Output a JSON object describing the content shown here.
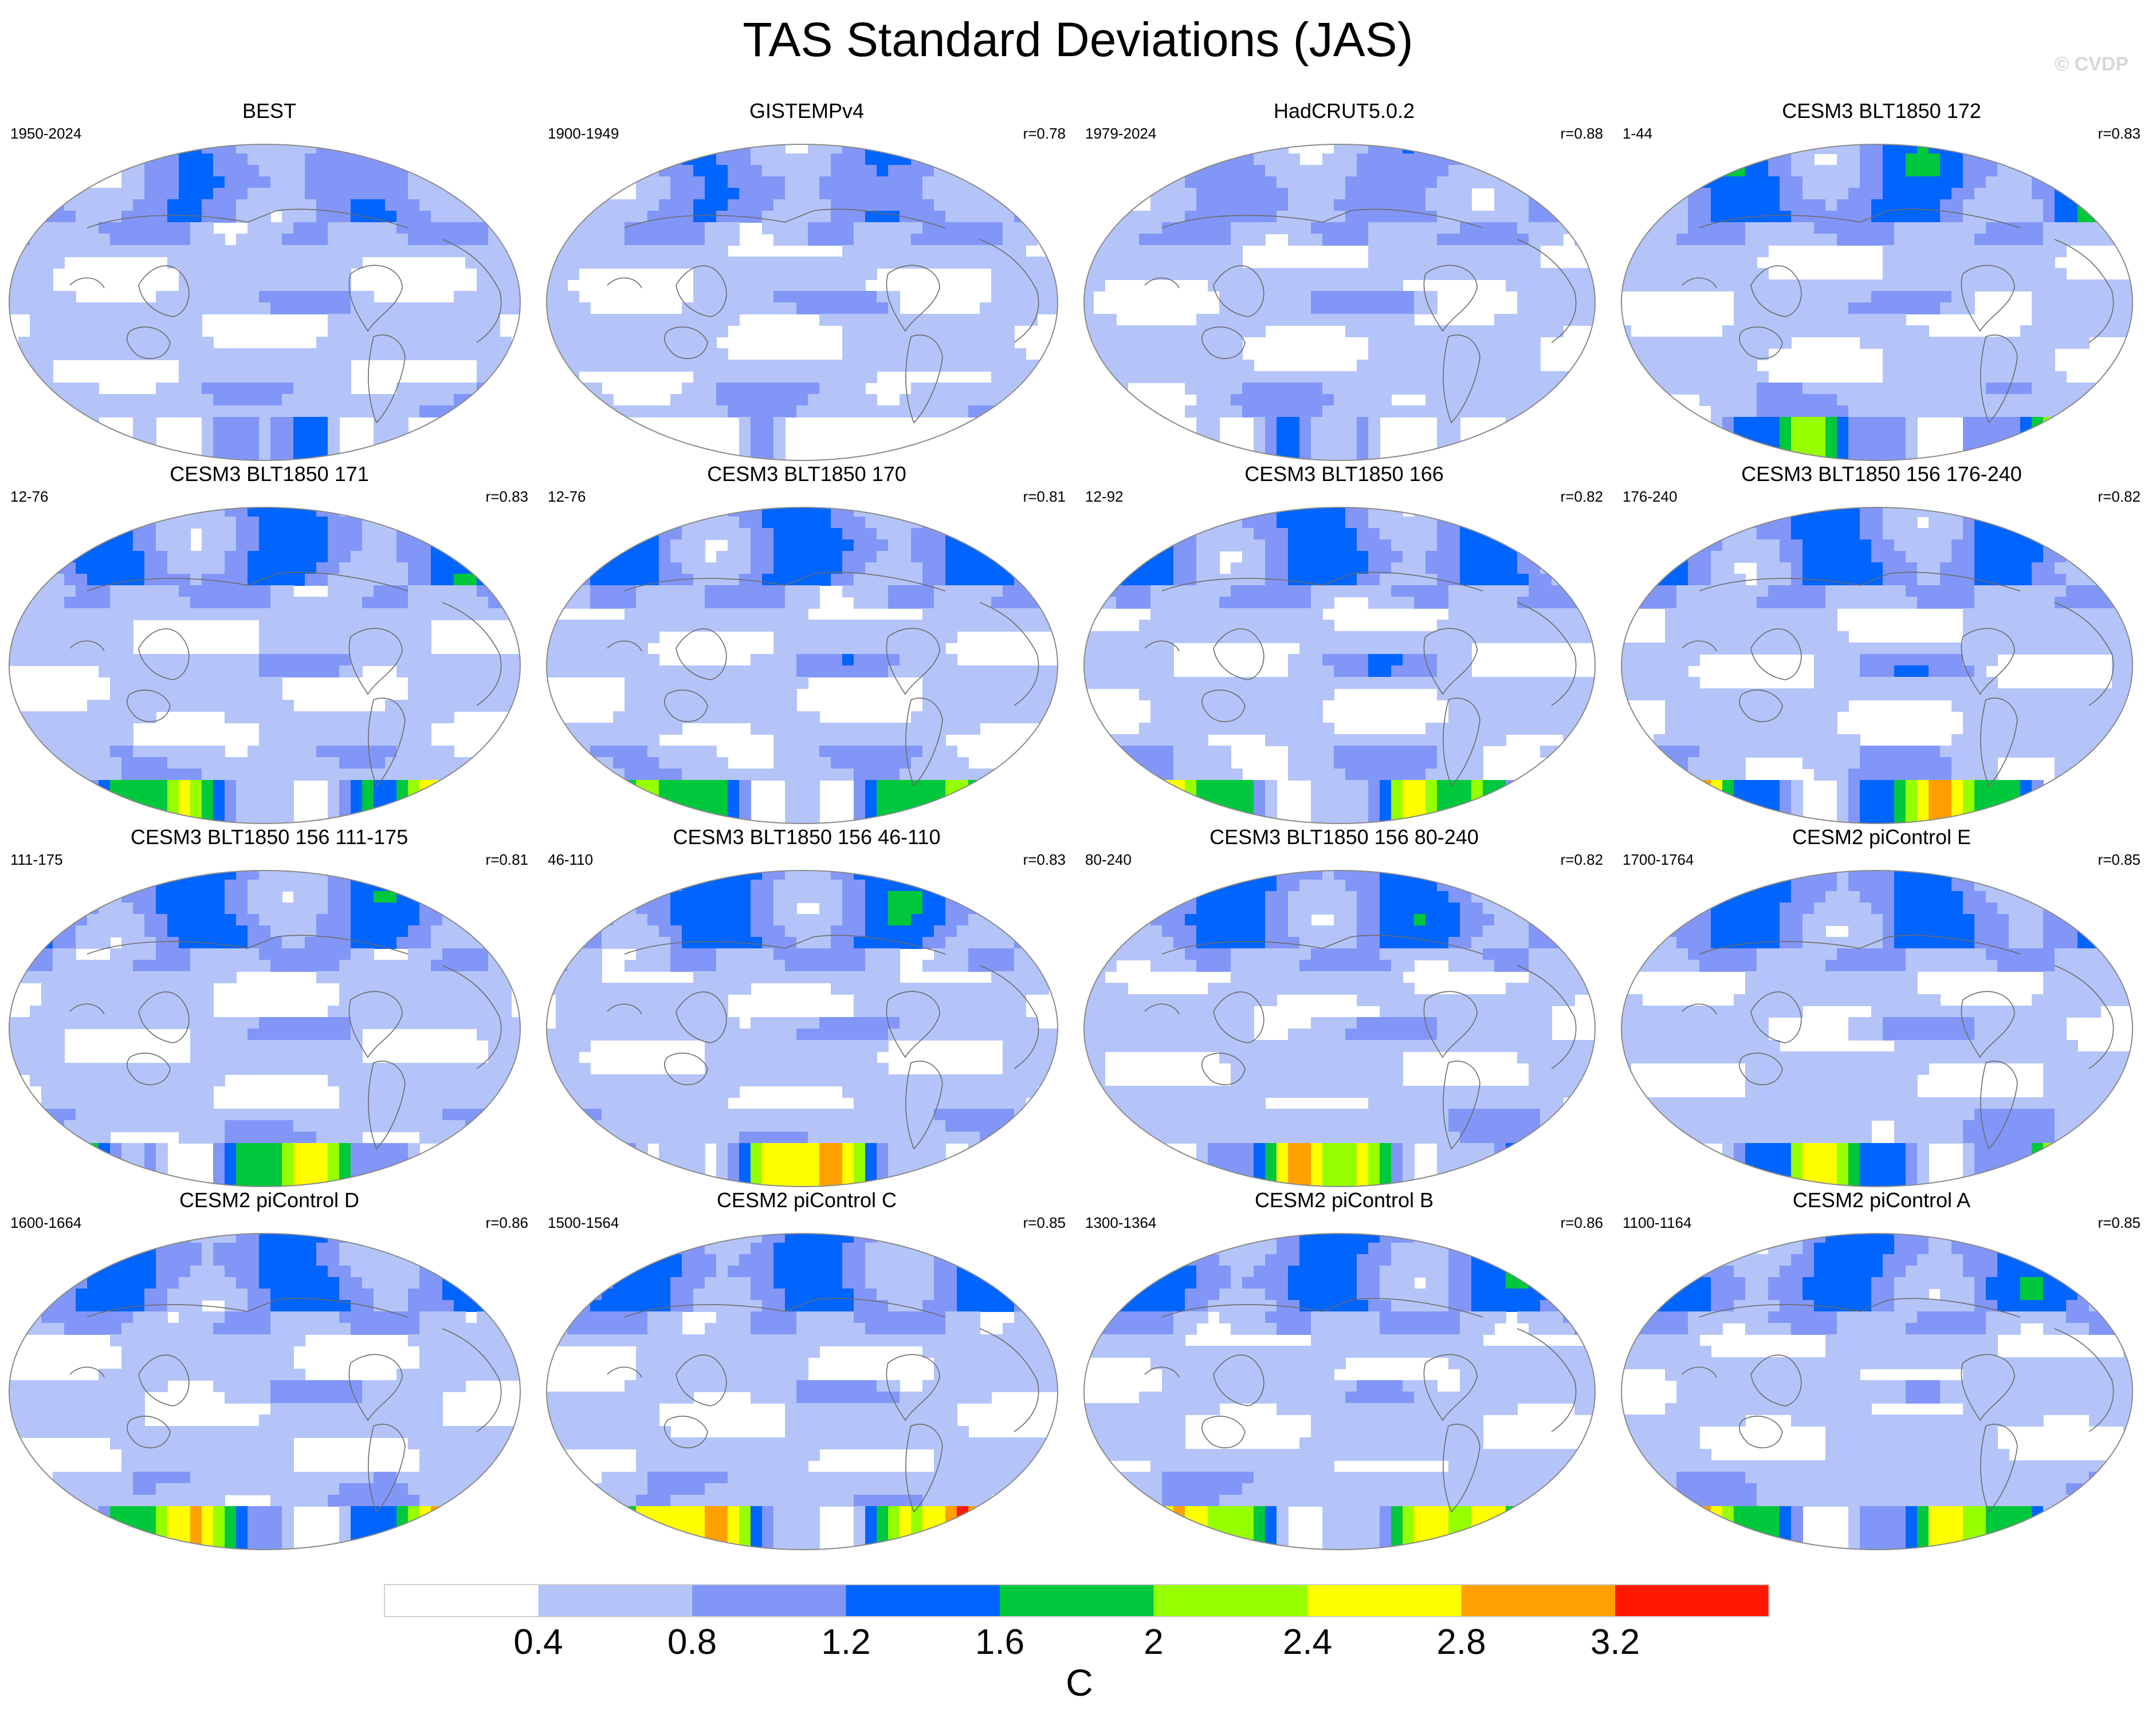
{
  "title": "TAS Standard Deviations (JAS)",
  "watermark": "© CVDP",
  "panels": [
    {
      "title": "BEST",
      "years": "1950-2024",
      "corr": "",
      "variant": "obs",
      "ant": 1.2,
      "arc": 1.0
    },
    {
      "title": "GISTEMPv4",
      "years": "1900-1949",
      "corr": "r=0.78",
      "variant": "obs-gap",
      "ant": 0.6,
      "arc": 1.0
    },
    {
      "title": "HadCRUT5.0.2",
      "years": "1979-2024",
      "corr": "r=0.88",
      "variant": "obs",
      "ant": 0.9,
      "arc": 0.8
    },
    {
      "title": "CESM3 BLT1850 172",
      "years": "1-44",
      "corr": "r=0.83",
      "variant": "model",
      "ant": 2.0,
      "arc": 1.4
    },
    {
      "title": "CESM3 BLT1850 171",
      "years": "12-76",
      "corr": "r=0.83",
      "variant": "model",
      "ant": 2.2,
      "arc": 1.3
    },
    {
      "title": "CESM3 BLT1850 170",
      "years": "12-76",
      "corr": "r=0.81",
      "variant": "model",
      "ant": 2.0,
      "arc": 1.3
    },
    {
      "title": "CESM3 BLT1850 166",
      "years": "12-92",
      "corr": "r=0.82",
      "variant": "model",
      "ant": 2.3,
      "arc": 1.3
    },
    {
      "title": "CESM3 BLT1850 156 176-240",
      "years": "176-240",
      "corr": "r=0.82",
      "variant": "model",
      "ant": 2.8,
      "arc": 1.3
    },
    {
      "title": "CESM3 BLT1850 156 111-175",
      "years": "111-175",
      "corr": "r=0.81",
      "variant": "model",
      "ant": 2.4,
      "arc": 1.3
    },
    {
      "title": "CESM3 BLT1850 156 46-110",
      "years": "46-110",
      "corr": "r=0.83",
      "variant": "model",
      "ant": 2.9,
      "arc": 1.4
    },
    {
      "title": "CESM3 BLT1850 156 80-240",
      "years": "80-240",
      "corr": "r=0.82",
      "variant": "model",
      "ant": 2.8,
      "arc": 1.3
    },
    {
      "title": "CESM2 piControl E",
      "years": "1700-1764",
      "corr": "r=0.85",
      "variant": "model",
      "ant": 2.4,
      "arc": 1.3
    },
    {
      "title": "CESM2 piControl D",
      "years": "1600-1664",
      "corr": "r=0.86",
      "variant": "model",
      "ant": 2.6,
      "arc": 1.3
    },
    {
      "title": "CESM2 piControl C",
      "years": "1500-1564",
      "corr": "r=0.85",
      "variant": "model",
      "ant": 3.0,
      "arc": 1.3
    },
    {
      "title": "CESM2 piControl B",
      "years": "1300-1364",
      "corr": "r=0.86",
      "variant": "model",
      "ant": 2.7,
      "arc": 1.3
    },
    {
      "title": "CESM2 piControl A",
      "years": "1100-1164",
      "corr": "r=0.85",
      "variant": "model",
      "ant": 2.5,
      "arc": 1.3
    }
  ],
  "colorbar": {
    "colors": [
      "#ffffff",
      "#b4c4f8",
      "#8296f8",
      "#0064ff",
      "#00c83c",
      "#96ff00",
      "#ffff00",
      "#ffa000",
      "#ff1900"
    ],
    "ticks": [
      "0.4",
      "0.8",
      "1.2",
      "1.6",
      "2",
      "2.4",
      "2.8",
      "3.2"
    ],
    "unit": "C"
  }
}
